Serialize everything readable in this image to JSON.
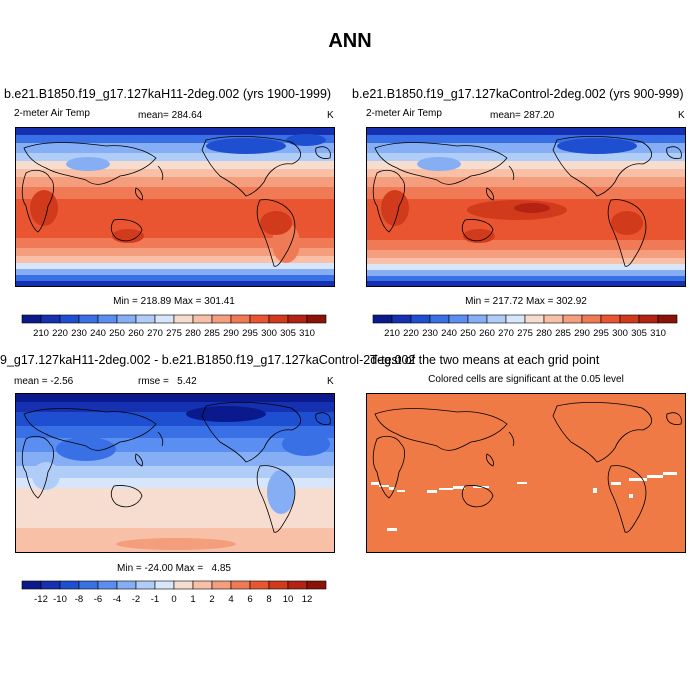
{
  "page_title": "ANN",
  "panels": [
    {
      "title": "b.e21.B1850.f19_g17.127kaH11-2deg.002 (yrs 1900-1999)",
      "left_label": "2-meter Air Temp",
      "center_label": "mean= 284.64",
      "right_label": "K",
      "minmax": "Min = 218.89 Max = 301.41"
    },
    {
      "title": "b.e21.B1850.f19_g17.127kaControl-2deg.002 (yrs 900-999)",
      "left_label": "2-meter Air Temp",
      "center_label": "mean= 287.20",
      "right_label": "K",
      "minmax": "Min = 217.72 Max = 302.92"
    },
    {
      "title": "9_g17.127kaH11-2deg.002 - b.e21.B1850.f19_g17.127kaControl-2deg.002",
      "left_label": "mean =  -2.56",
      "center_label": "rmse =   5.42",
      "right_label": "K",
      "minmax": "Min = -24.00 Max =   4.85"
    },
    {
      "title": "T-test of the two means at each grid point",
      "subtitle": "Colored cells are significant at the 0.05 level"
    }
  ],
  "colorbars": {
    "absolute": {
      "labels": [
        "210",
        "220",
        "230",
        "240",
        "250",
        "260",
        "270",
        "275",
        "280",
        "285",
        "290",
        "295",
        "300",
        "305",
        "310"
      ],
      "colors": [
        "#0a1a8c",
        "#1530b0",
        "#1e4fd0",
        "#3a70e6",
        "#5a8ef0",
        "#86aef5",
        "#b0cdf8",
        "#d8e6fb",
        "#f7ddd0",
        "#f8c0a6",
        "#f59e7e",
        "#f07a55",
        "#e85530",
        "#d23a1c",
        "#b42212",
        "#8c1208"
      ]
    },
    "difference": {
      "labels": [
        "-12",
        "-10",
        "-8",
        "-6",
        "-4",
        "-2",
        "-1",
        "0",
        "1",
        "2",
        "4",
        "6",
        "8",
        "10",
        "12"
      ],
      "colors": [
        "#0a1a8c",
        "#1530b0",
        "#1e4fd0",
        "#3a70e6",
        "#5a8ef0",
        "#86aef5",
        "#b0cdf8",
        "#d8e6fb",
        "#f7ddd0",
        "#f8c0a6",
        "#f59e7e",
        "#f07a55",
        "#e85530",
        "#d23a1c",
        "#b42212",
        "#8c1208"
      ]
    }
  },
  "ttest_color": "#f07a45"
}
